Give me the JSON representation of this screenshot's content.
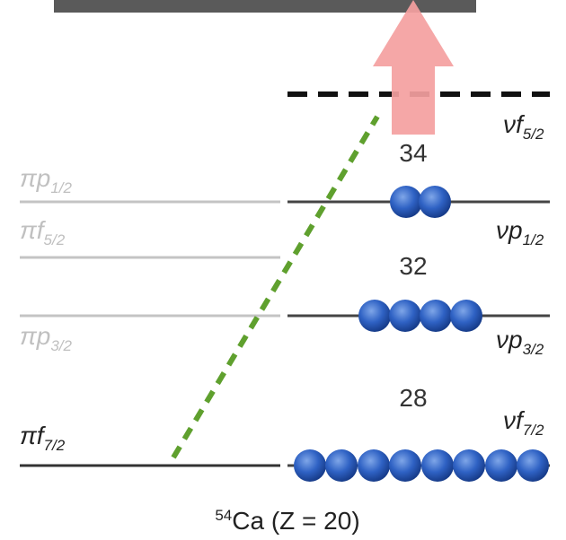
{
  "proton_levels": [
    {
      "symbol": "πp",
      "sub": "1/2"
    },
    {
      "symbol": "πf",
      "sub": "5/2"
    },
    {
      "symbol": "πp",
      "sub": "3/2"
    },
    {
      "symbol": "πf",
      "sub": "7/2"
    }
  ],
  "neutron_levels": [
    {
      "symbol": "νf",
      "sub": "5/2"
    },
    {
      "symbol": "νp",
      "sub": "1/2"
    },
    {
      "symbol": "νp",
      "sub": "3/2"
    },
    {
      "symbol": "νf",
      "sub": "7/2"
    }
  ],
  "gaps": [
    "34",
    "32",
    "28"
  ],
  "caption": {
    "sup": "54",
    "text": "Ca (Z = 20)"
  }
}
